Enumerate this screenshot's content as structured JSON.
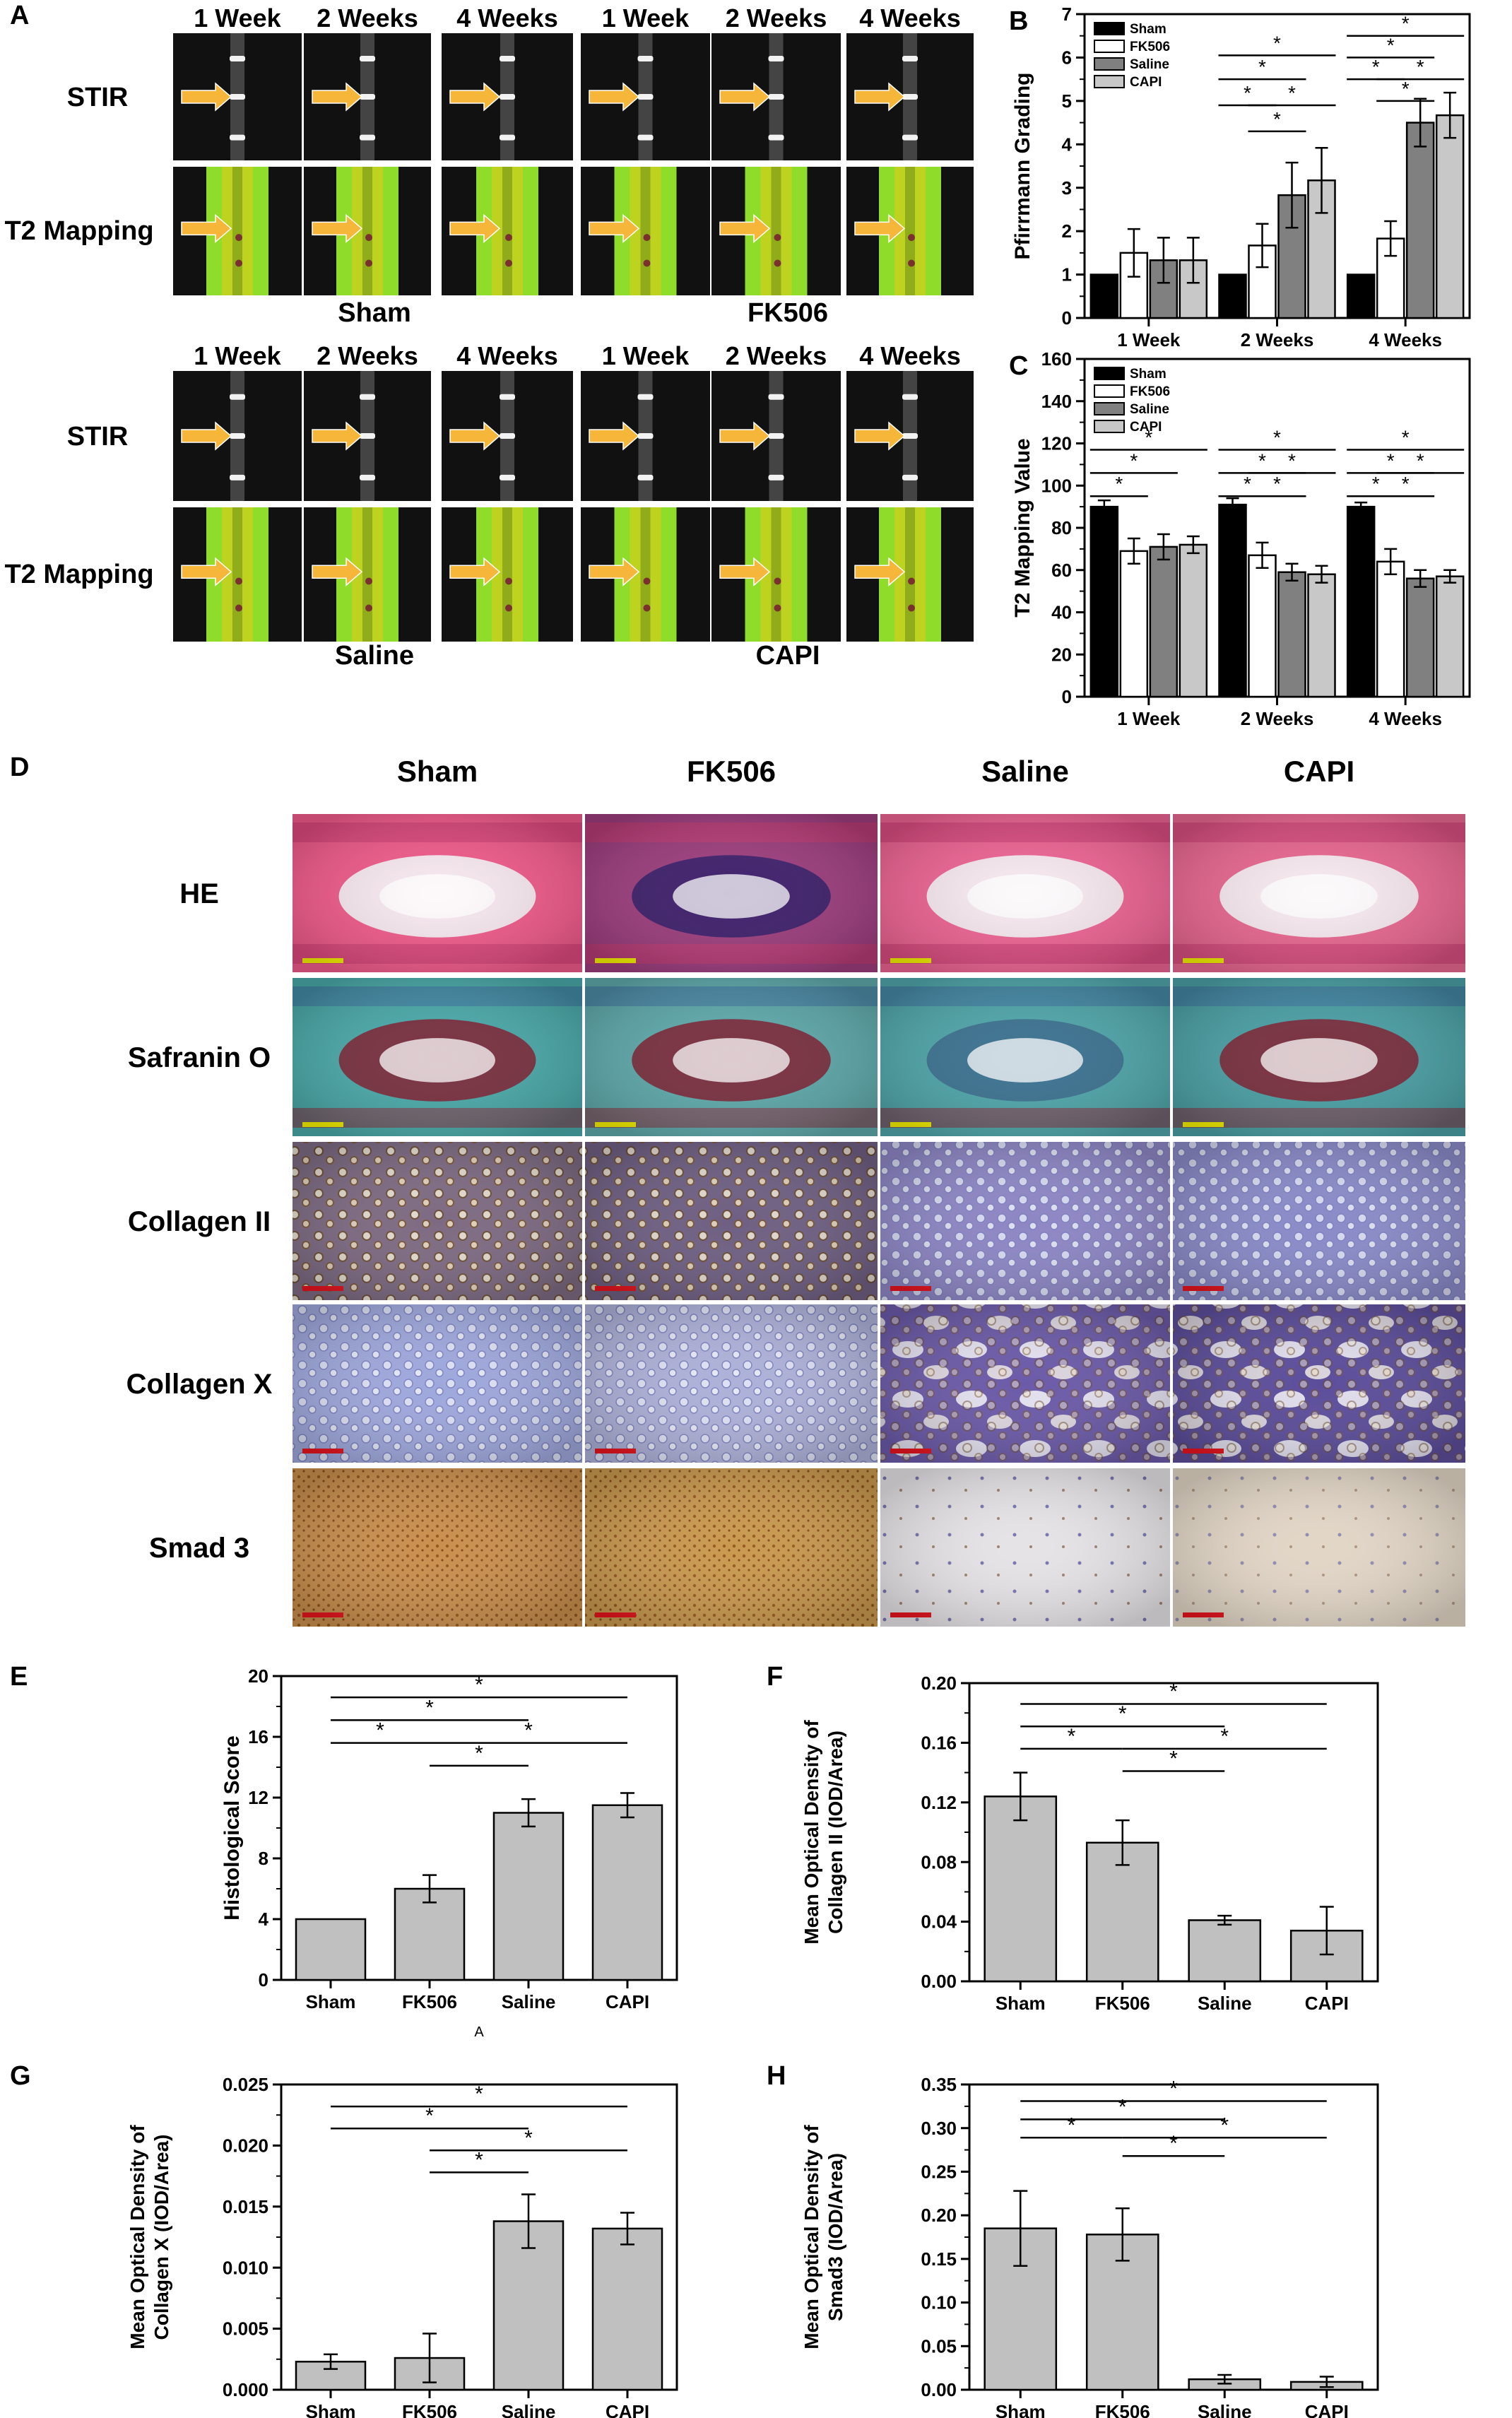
{
  "panel_letters": {
    "A": "A",
    "B": "B",
    "C": "C",
    "D": "D",
    "E": "E",
    "F": "F",
    "G": "G",
    "H": "H"
  },
  "mri": {
    "week_labels": [
      "1 Week",
      "2 Weeks",
      "4 Weeks"
    ],
    "row_labels": [
      "STIR",
      "T2 Mapping"
    ],
    "groups": [
      "Sham",
      "FK506",
      "Saline",
      "CAPI"
    ],
    "colors": {
      "mri_bg": "#111111",
      "t2_band": "#8fdc2a",
      "t2_core": "#c2d11f",
      "arrow": "#f6b63a"
    }
  },
  "histology": {
    "column_headers": [
      "Sham",
      "FK506",
      "Saline",
      "CAPI"
    ],
    "row_labels": [
      "HE",
      "Safranin O",
      "Collagen II",
      "Collagen X",
      "Smad 3"
    ],
    "stain_colors": {
      "HE": [
        "#ef5a8a",
        "#9c3d7d",
        "#ec6392",
        "#e76690"
      ],
      "Safranin O": [
        "#4aa8a8",
        "#5ea8aa",
        "#4fa5a9",
        "#4a9fa4"
      ],
      "Collagen II": [
        "#7d6a82",
        "#6e5f82",
        "#8d86c4",
        "#8a8ac8"
      ],
      "Collagen X": [
        "#9fa8dc",
        "#aeb1d8",
        "#6b5aa8",
        "#5b4d9a"
      ],
      "Smad 3": [
        "#c98f4e",
        "#c9994f",
        "#e6e3e6",
        "#e2d6c6"
      ]
    },
    "scale_colors": {
      "yellow": "#f5f000",
      "red": "#e6141e"
    }
  },
  "sig_marker": "*",
  "chart_data": [
    {
      "id": "B",
      "type": "bar",
      "title": "",
      "xlabel": "",
      "ylabel": "Pfirrmann Grading",
      "categories": [
        "1 Week",
        "2 Weeks",
        "4 Weeks"
      ],
      "ylim": [
        0,
        7
      ],
      "yticks": [
        "0",
        "1",
        "2",
        "3",
        "4",
        "5",
        "6",
        "7"
      ],
      "legend": "top-left",
      "series": [
        {
          "name": "Sham",
          "color": "#000000",
          "values": [
            1,
            1,
            1
          ],
          "errors": [
            0,
            0,
            0
          ]
        },
        {
          "name": "FK506",
          "color": "#ffffff",
          "values": [
            1.5,
            1.67,
            1.83
          ],
          "errors": [
            0.55,
            0.5,
            0.4
          ]
        },
        {
          "name": "Saline",
          "color": "#808080",
          "values": [
            1.33,
            2.83,
            4.5
          ],
          "errors": [
            0.52,
            0.75,
            0.55
          ]
        },
        {
          "name": "CAPI",
          "color": "#c8c8c8",
          "values": [
            1.33,
            3.17,
            4.67
          ],
          "errors": [
            0.52,
            0.75,
            0.52
          ]
        }
      ]
    },
    {
      "id": "C",
      "type": "bar",
      "title": "",
      "xlabel": "",
      "ylabel": "T2 Mapping Value",
      "categories": [
        "1 Week",
        "2 Weeks",
        "4 Weeks"
      ],
      "ylim": [
        0,
        160
      ],
      "yticks": [
        "0",
        "20",
        "40",
        "60",
        "80",
        "100",
        "120",
        "140",
        "160"
      ],
      "legend": "top-left",
      "series": [
        {
          "name": "Sham",
          "color": "#000000",
          "values": [
            90,
            91,
            90
          ],
          "errors": [
            3,
            3,
            2
          ]
        },
        {
          "name": "FK506",
          "color": "#ffffff",
          "values": [
            69,
            67,
            64
          ],
          "errors": [
            6,
            6,
            6
          ]
        },
        {
          "name": "Saline",
          "color": "#808080",
          "values": [
            71,
            59,
            56
          ],
          "errors": [
            6,
            4,
            4
          ]
        },
        {
          "name": "CAPI",
          "color": "#c8c8c8",
          "values": [
            72,
            58,
            57
          ],
          "errors": [
            4,
            4,
            3
          ]
        }
      ]
    },
    {
      "id": "E",
      "type": "bar",
      "title": "",
      "xlabel": "",
      "ylabel": "Histological Score",
      "categories": [
        "Sham",
        "FK506",
        "Saline",
        "CAPI"
      ],
      "values": [
        4,
        6,
        11,
        11.5
      ],
      "errors": [
        0,
        0.9,
        0.9,
        0.8
      ],
      "ylim": [
        0,
        20
      ],
      "yticks": [
        "0",
        "4",
        "8",
        "12",
        "16",
        "20"
      ],
      "note": "A"
    },
    {
      "id": "F",
      "type": "bar",
      "title": "",
      "xlabel": "",
      "ylabel_lines": [
        "Mean Optical Density of",
        "Collagen II (IOD/Area)"
      ],
      "categories": [
        "Sham",
        "FK506",
        "Saline",
        "CAPI"
      ],
      "values": [
        0.124,
        0.093,
        0.041,
        0.034
      ],
      "errors": [
        0.016,
        0.015,
        0.003,
        0.016
      ],
      "ylim": [
        0,
        0.2
      ],
      "yticks": [
        "0.00",
        "0.04",
        "0.08",
        "0.12",
        "0.16",
        "0.20"
      ]
    },
    {
      "id": "G",
      "type": "bar",
      "title": "",
      "xlabel": "",
      "ylabel_lines": [
        "Mean Optical Density of",
        "Collagen X (IOD/Area)"
      ],
      "categories": [
        "Sham",
        "FK506",
        "Saline",
        "CAPI"
      ],
      "values": [
        0.0023,
        0.0026,
        0.0138,
        0.0132
      ],
      "errors": [
        0.0006,
        0.002,
        0.0022,
        0.0013
      ],
      "ylim": [
        0,
        0.025
      ],
      "yticks": [
        "0.000",
        "0.005",
        "0.010",
        "0.015",
        "0.020",
        "0.025"
      ]
    },
    {
      "id": "H",
      "type": "bar",
      "title": "",
      "xlabel": "",
      "ylabel_lines": [
        "Mean Optical Density of",
        "Smad3 (IOD/Area)"
      ],
      "categories": [
        "Sham",
        "FK506",
        "Saline",
        "CAPI"
      ],
      "values": [
        0.185,
        0.178,
        0.012,
        0.009
      ],
      "errors": [
        0.043,
        0.03,
        0.005,
        0.006
      ],
      "ylim": [
        0,
        0.35
      ],
      "yticks": [
        "0.00",
        "0.05",
        "0.10",
        "0.15",
        "0.20",
        "0.25",
        "0.30",
        "0.35"
      ]
    }
  ]
}
